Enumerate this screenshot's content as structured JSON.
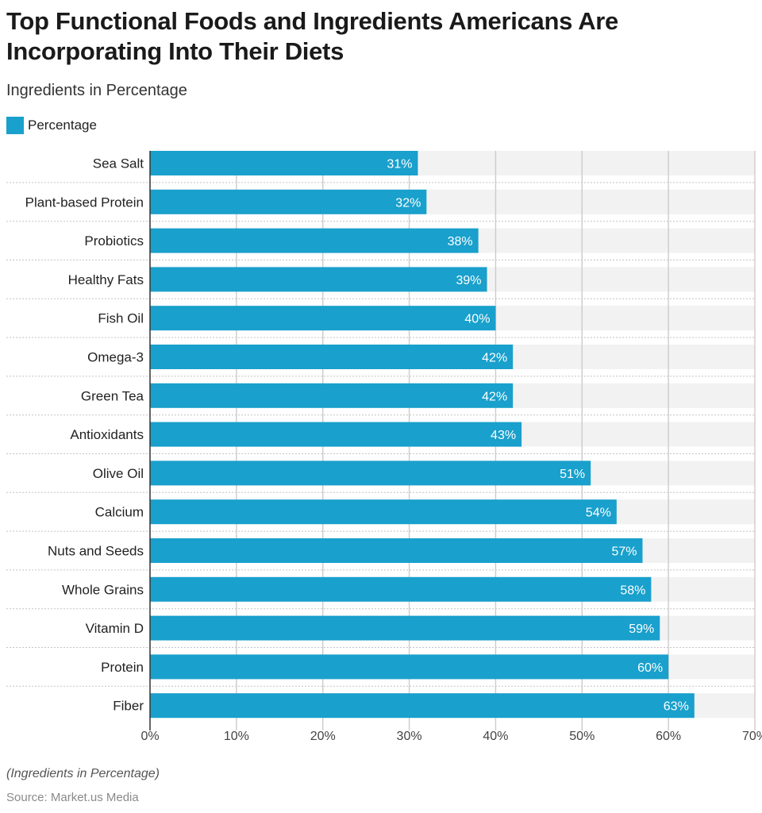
{
  "title": "Top Functional Foods and Ingredients Americans Are Incorporating Into Their Diets",
  "subtitle": "Ingredients in Percentage",
  "legend": {
    "label": "Percentage",
    "color": "#19a0cc"
  },
  "footnote": "(Ingredients in Percentage)",
  "source": "Source: Market.us Media",
  "colors": {
    "bar": "#19a0cc",
    "band": "#f2f2f2",
    "grid": "#cccccc",
    "row_separator": "#c4c4c4",
    "axis": "#333333",
    "value_label": "#ffffff",
    "text": "#222222",
    "tick": "#444444"
  },
  "chart_data": {
    "type": "bar",
    "orientation": "horizontal",
    "title": "Top Functional Foods and Ingredients Americans Are Incorporating Into Their Diets",
    "subtitle": "Ingredients in Percentage",
    "xlabel": "",
    "ylabel": "",
    "xlim": [
      0,
      70
    ],
    "ticks": [
      0,
      10,
      20,
      30,
      40,
      50,
      60,
      70
    ],
    "tick_labels": [
      "0%",
      "10%",
      "20%",
      "30%",
      "40%",
      "50%",
      "60%",
      "70%"
    ],
    "grid": true,
    "legend_position": "top-left",
    "categories": [
      "Sea Salt",
      "Plant-based Protein",
      "Probiotics",
      "Healthy Fats",
      "Fish Oil",
      "Omega-3",
      "Green Tea",
      "Antioxidants",
      "Olive Oil",
      "Calcium",
      "Nuts and Seeds",
      "Whole Grains",
      "Vitamin D",
      "Protein",
      "Fiber"
    ],
    "series": [
      {
        "name": "Percentage",
        "values": [
          31,
          32,
          38,
          39,
          40,
          42,
          42,
          43,
          51,
          54,
          57,
          58,
          59,
          60,
          63
        ],
        "labels": [
          "31%",
          "32%",
          "38%",
          "39%",
          "40%",
          "42%",
          "42%",
          "43%",
          "51%",
          "54%",
          "57%",
          "58%",
          "59%",
          "60%",
          "63%"
        ]
      }
    ]
  }
}
